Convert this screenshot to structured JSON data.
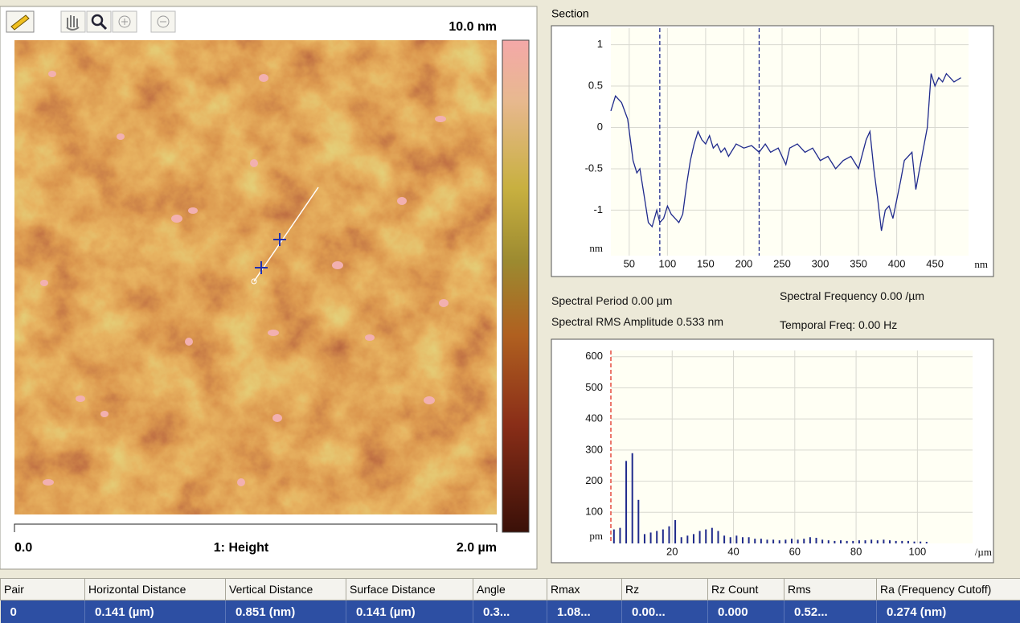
{
  "image": {
    "scale_max": "10.0 nm",
    "scale_min": "0.0",
    "channel": "1: Height",
    "scan_size": "2.0 µm"
  },
  "chart_data": [
    {
      "type": "line",
      "title": "Section",
      "x": [
        26,
        32,
        40,
        48,
        55,
        60,
        64,
        70,
        75,
        80,
        86,
        90,
        95,
        100,
        105,
        110,
        115,
        120,
        125,
        130,
        135,
        140,
        145,
        150,
        155,
        160,
        165,
        170,
        175,
        180,
        190,
        200,
        210,
        220,
        228,
        235,
        245,
        255,
        260,
        270,
        280,
        290,
        300,
        310,
        320,
        330,
        340,
        350,
        360,
        365,
        370,
        375,
        380,
        385,
        390,
        395,
        405,
        410,
        420,
        425,
        430,
        440,
        445,
        450,
        455,
        460,
        465,
        475,
        484
      ],
      "values": [
        0.2,
        0.38,
        0.3,
        0.1,
        -0.4,
        -0.55,
        -0.5,
        -0.85,
        -1.15,
        -1.2,
        -1.0,
        -1.15,
        -1.1,
        -0.95,
        -1.05,
        -1.1,
        -1.15,
        -1.05,
        -0.7,
        -0.4,
        -0.2,
        -0.05,
        -0.15,
        -0.2,
        -0.1,
        -0.25,
        -0.2,
        -0.3,
        -0.25,
        -0.35,
        -0.2,
        -0.25,
        -0.22,
        -0.3,
        -0.2,
        -0.3,
        -0.25,
        -0.45,
        -0.25,
        -0.2,
        -0.3,
        -0.25,
        -0.4,
        -0.35,
        -0.5,
        -0.4,
        -0.35,
        -0.5,
        -0.15,
        -0.05,
        -0.5,
        -0.85,
        -1.25,
        -1.0,
        -0.95,
        -1.1,
        -0.65,
        -0.4,
        -0.3,
        -0.75,
        -0.5,
        0.0,
        0.65,
        0.5,
        0.6,
        0.55,
        0.65,
        0.55,
        0.6
      ],
      "color": "#1f2a8c",
      "cursors": [
        90,
        220
      ],
      "cursor_color": "#1f2a8c",
      "xlim": [
        26,
        494
      ],
      "xticks": [
        50,
        100,
        150,
        200,
        250,
        300,
        350,
        400,
        450
      ],
      "x_unit": "nm",
      "ylim": [
        -1.55,
        1.2
      ],
      "yticks": [
        1,
        0.5,
        0,
        -0.5,
        -1
      ],
      "y_unit": "nm",
      "grid": true
    },
    {
      "type": "bar",
      "x": [
        1,
        3,
        5,
        7,
        9,
        11,
        13,
        15,
        17,
        19,
        21,
        23,
        25,
        27,
        29,
        31,
        33,
        35,
        37,
        39,
        41,
        43,
        45,
        47,
        49,
        51,
        53,
        55,
        57,
        59,
        61,
        63,
        65,
        67,
        69,
        71,
        73,
        75,
        77,
        79,
        81,
        83,
        85,
        87,
        89,
        91,
        93,
        95,
        97,
        99,
        101,
        103
      ],
      "values": [
        45,
        50,
        265,
        290,
        140,
        30,
        35,
        40,
        45,
        55,
        75,
        20,
        25,
        30,
        40,
        45,
        50,
        40,
        25,
        20,
        25,
        20,
        20,
        15,
        15,
        12,
        12,
        10,
        12,
        15,
        12,
        15,
        20,
        18,
        12,
        10,
        8,
        10,
        8,
        8,
        10,
        10,
        12,
        10,
        12,
        10,
        8,
        8,
        8,
        6,
        6,
        5
      ],
      "color": "#1f2a8c",
      "cursors": [
        0
      ],
      "cursor_color": "#e03020",
      "xlim": [
        0,
        118
      ],
      "xticks": [
        20,
        40,
        60,
        80,
        100
      ],
      "x_unit": "/µm",
      "ylim": [
        0,
        620
      ],
      "yticks": [
        100,
        200,
        300,
        400,
        500,
        600
      ],
      "y_unit": "pm",
      "grid": true
    }
  ],
  "spectral_info": [
    "Spectral Period 0.00 µm",
    "Spectral Frequency 0.00 /µm",
    "Spectral RMS Amplitude 0.533 nm",
    "Temporal Freq: 0.00 Hz"
  ],
  "table": {
    "columns": [
      "Pair",
      "Horizontal Distance",
      "Vertical Distance",
      "Surface Distance",
      "Angle",
      "Rmax",
      "Rz",
      "Rz Count",
      "Rms",
      "Ra (Frequency Cutoff)"
    ],
    "rows": [
      [
        "0",
        "0.141 (µm)",
        "0.851 (nm)",
        "0.141 (µm)",
        "0.3...",
        "1.08...",
        "0.00...",
        "0.000",
        "0.52...",
        "0.274 (nm)"
      ]
    ]
  }
}
